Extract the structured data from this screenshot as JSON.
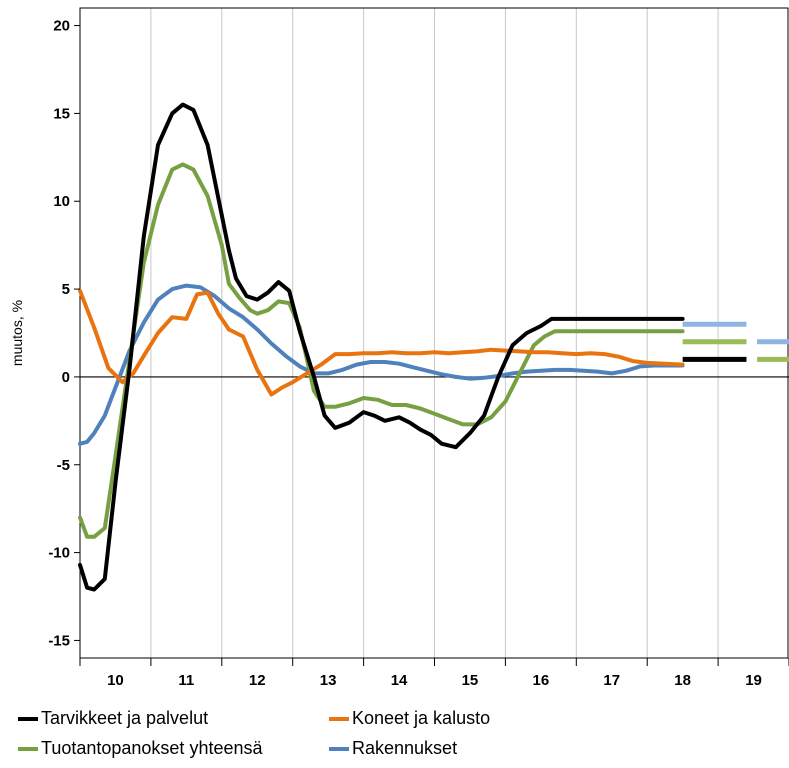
{
  "chart_data": {
    "type": "line",
    "ylabel": "muutos, %",
    "xlabel": "",
    "ylim": [
      -16,
      21
    ],
    "yticks": [
      -15,
      -10,
      -5,
      0,
      5,
      10,
      15,
      20
    ],
    "xlim": [
      9.5,
      19.5
    ],
    "xtick_labels": [
      "10",
      "11",
      "12",
      "13",
      "14",
      "15",
      "16",
      "17",
      "18",
      "19"
    ],
    "grid": "vertical",
    "legend_position": "bottom",
    "series": [
      {
        "name": "Tarvikkeet ja palvelut",
        "color": "#000000",
        "x": [
          9.5,
          9.6,
          9.7,
          9.85,
          10.0,
          10.2,
          10.4,
          10.6,
          10.8,
          10.95,
          11.1,
          11.3,
          11.5,
          11.6,
          11.7,
          11.85,
          12.0,
          12.15,
          12.3,
          12.45,
          12.6,
          12.8,
          12.95,
          13.1,
          13.3,
          13.4,
          13.5,
          13.65,
          13.8,
          14.0,
          14.15,
          14.3,
          14.45,
          14.6,
          14.8,
          15.0,
          15.2,
          15.4,
          15.6,
          15.8,
          16.0,
          16.15,
          16.3,
          16.45,
          16.6,
          16.75,
          16.9,
          17.05,
          17.2,
          17.4,
          17.5,
          17.6,
          17.75,
          17.9,
          18.0
        ],
        "y": [
          -10.7,
          -12.0,
          -12.1,
          -11.5,
          -6.0,
          0.5,
          8.0,
          13.2,
          15.0,
          15.5,
          15.2,
          13.2,
          9.2,
          7.2,
          5.6,
          4.6,
          4.4,
          4.8,
          5.4,
          4.9,
          2.6,
          0.0,
          -2.2,
          -2.9,
          -2.6,
          -2.3,
          -2.0,
          -2.2,
          -2.5,
          -2.3,
          -2.6,
          -3.0,
          -3.3,
          -3.8,
          -4.0,
          -3.2,
          -2.2,
          0.0,
          1.8,
          2.5,
          2.9,
          3.3,
          3.3,
          3.3,
          3.3,
          3.3,
          3.3,
          3.3,
          3.3,
          3.3,
          3.3,
          3.3,
          3.3,
          3.3,
          3.3
        ]
      },
      {
        "name": "Koneet ja kalusto",
        "color": "#E8730F",
        "x": [
          9.5,
          9.7,
          9.9,
          10.1,
          10.25,
          10.4,
          10.6,
          10.8,
          11.0,
          11.15,
          11.3,
          11.45,
          11.6,
          11.8,
          12.0,
          12.2,
          12.35,
          12.5,
          12.7,
          12.9,
          13.1,
          13.3,
          13.5,
          13.7,
          13.9,
          14.1,
          14.3,
          14.5,
          14.7,
          14.9,
          15.1,
          15.3,
          15.5,
          15.7,
          15.9,
          16.1,
          16.3,
          16.5,
          16.7,
          16.9,
          17.1,
          17.3,
          17.5,
          17.75,
          18.0
        ],
        "y": [
          4.9,
          2.8,
          0.5,
          -0.3,
          0.2,
          1.2,
          2.5,
          3.4,
          3.3,
          4.7,
          4.8,
          3.6,
          2.7,
          2.3,
          0.4,
          -1.0,
          -0.6,
          -0.3,
          0.2,
          0.7,
          1.3,
          1.3,
          1.35,
          1.35,
          1.4,
          1.35,
          1.35,
          1.4,
          1.35,
          1.4,
          1.45,
          1.55,
          1.5,
          1.45,
          1.4,
          1.4,
          1.35,
          1.3,
          1.35,
          1.3,
          1.15,
          0.9,
          0.8,
          0.75,
          0.7
        ]
      },
      {
        "name": "Tuotantopanokset yhteensä",
        "color": "#77A043",
        "x": [
          9.5,
          9.6,
          9.7,
          9.85,
          10.0,
          10.2,
          10.4,
          10.6,
          10.8,
          10.95,
          11.1,
          11.3,
          11.5,
          11.6,
          11.75,
          11.9,
          12.0,
          12.15,
          12.3,
          12.45,
          12.6,
          12.8,
          12.95,
          13.1,
          13.3,
          13.5,
          13.7,
          13.9,
          14.1,
          14.3,
          14.5,
          14.7,
          14.9,
          15.1,
          15.3,
          15.5,
          15.7,
          15.9,
          16.05,
          16.2,
          16.35,
          16.5,
          16.6,
          16.75,
          16.9,
          17.05,
          17.2,
          17.4,
          17.5,
          17.6,
          17.75,
          17.9,
          18.0
        ],
        "y": [
          -8.0,
          -9.1,
          -9.1,
          -8.6,
          -4.5,
          1.0,
          6.5,
          9.8,
          11.8,
          12.1,
          11.8,
          10.3,
          7.5,
          5.3,
          4.5,
          3.8,
          3.6,
          3.8,
          4.3,
          4.2,
          2.8,
          -0.8,
          -1.7,
          -1.7,
          -1.5,
          -1.2,
          -1.3,
          -1.6,
          -1.6,
          -1.8,
          -2.1,
          -2.4,
          -2.7,
          -2.7,
          -2.3,
          -1.4,
          0.2,
          1.8,
          2.3,
          2.6,
          2.6,
          2.6,
          2.6,
          2.6,
          2.6,
          2.6,
          2.6,
          2.6,
          2.6,
          2.6,
          2.6,
          2.6,
          2.6
        ]
      },
      {
        "name": "Rakennukset",
        "color": "#4F81BD",
        "x": [
          9.5,
          9.6,
          9.7,
          9.85,
          10.0,
          10.2,
          10.4,
          10.6,
          10.8,
          11.0,
          11.2,
          11.4,
          11.6,
          11.8,
          12.0,
          12.2,
          12.4,
          12.6,
          12.8,
          13.0,
          13.2,
          13.4,
          13.6,
          13.8,
          14.0,
          14.2,
          14.4,
          14.6,
          14.8,
          15.0,
          15.2,
          15.4,
          15.6,
          15.8,
          16.0,
          16.2,
          16.4,
          16.6,
          16.8,
          17.0,
          17.2,
          17.4,
          17.6,
          17.8,
          18.0
        ],
        "y": [
          -3.8,
          -3.7,
          -3.2,
          -2.2,
          -0.6,
          1.5,
          3.1,
          4.4,
          5.0,
          5.2,
          5.1,
          4.6,
          3.9,
          3.4,
          2.7,
          1.9,
          1.2,
          0.6,
          0.2,
          0.2,
          0.4,
          0.7,
          0.85,
          0.85,
          0.75,
          0.55,
          0.35,
          0.15,
          0.0,
          -0.1,
          -0.05,
          0.05,
          0.2,
          0.3,
          0.35,
          0.4,
          0.4,
          0.35,
          0.3,
          0.2,
          0.35,
          0.6,
          0.65,
          0.65,
          0.65
        ]
      }
    ],
    "forecasts": [
      {
        "series": "Rakennukset",
        "color": "#8FB4E3",
        "segments": [
          {
            "x": [
              18.0,
              18.9
            ],
            "y": 3.0
          },
          {
            "x": [
              19.05,
              19.95
            ],
            "y": 2.0
          }
        ]
      },
      {
        "series": "Tuotantopanokset yhteensä",
        "color": "#9BBB59",
        "segments": [
          {
            "x": [
              18.0,
              18.9
            ],
            "y": 2.0
          },
          {
            "x": [
              19.05,
              19.95
            ],
            "y": 1.0
          }
        ]
      },
      {
        "series": "Tarvikkeet ja palvelut",
        "color": "#000000",
        "segments": [
          {
            "x": [
              18.0,
              18.9
            ],
            "y": 1.0
          }
        ]
      }
    ]
  }
}
